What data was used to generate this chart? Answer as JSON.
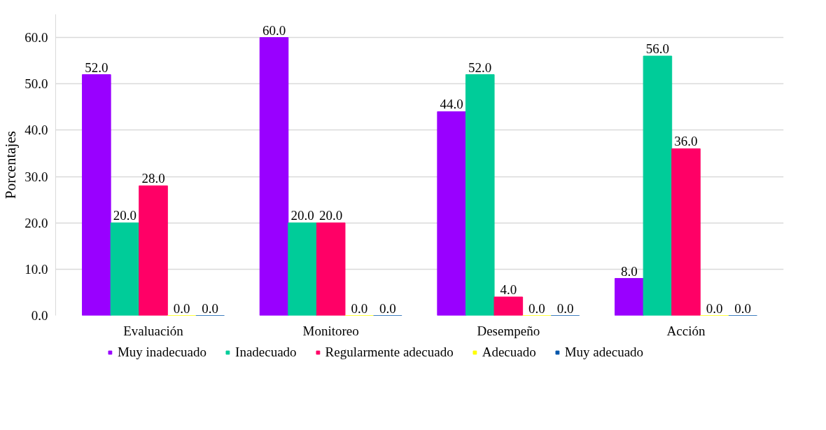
{
  "chart_data": {
    "type": "bar",
    "ylabel": "Porcentajes",
    "categories": [
      "Evaluación",
      "Monitoreo",
      "Desempeño",
      "Acción"
    ],
    "series": [
      {
        "name": "Muy inadecuado",
        "color": "#9900ff",
        "values": [
          52,
          60,
          44,
          8
        ],
        "value_labels": [
          "52.0",
          "60.0",
          "44.0",
          "8.0"
        ]
      },
      {
        "name": "Inadecuado",
        "color": "#00cc99",
        "values": [
          20,
          20,
          52,
          56
        ],
        "value_labels": [
          "20.0",
          "20.0",
          "52.0",
          "56.0"
        ]
      },
      {
        "name": "Regularmente adecuado",
        "color": "#ff0066",
        "values": [
          28,
          20,
          4,
          36
        ],
        "value_labels": [
          "28.0",
          "20.0",
          "4.0",
          "36.0"
        ]
      },
      {
        "name": "Adecuado",
        "color": "#ffff00",
        "values": [
          0,
          0,
          0,
          0
        ],
        "value_labels": [
          "0.0",
          "0.0",
          "0.0",
          "0.0"
        ]
      },
      {
        "name": "Muy adecuado",
        "color": "#0055aa",
        "values": [
          0,
          0,
          0,
          0
        ],
        "value_labels": [
          "0.0",
          "0.0",
          "0.0",
          "0.0"
        ]
      }
    ],
    "ylim": [
      0,
      65
    ],
    "yticks": [
      {
        "value": 0,
        "label": "0.0"
      },
      {
        "value": 10,
        "label": "10.0"
      },
      {
        "value": 20,
        "label": "20.0"
      },
      {
        "value": 30,
        "label": "30.0"
      },
      {
        "value": 40,
        "label": "40.0"
      },
      {
        "value": 50,
        "label": "50.0"
      },
      {
        "value": 60,
        "label": "60.0"
      }
    ],
    "grid": "y",
    "legend": "bottom"
  }
}
